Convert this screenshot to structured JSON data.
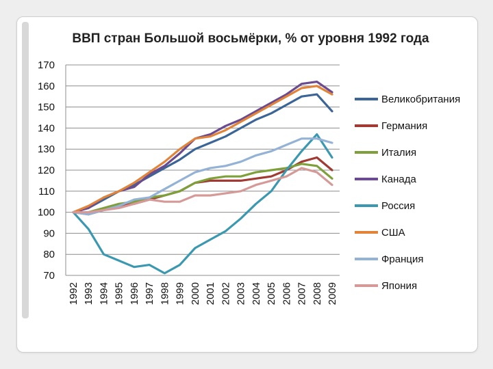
{
  "chart_data": {
    "type": "line",
    "title": "ВВП стран Большой восьмёрки, % от уровня 1992 года",
    "xlabel": "",
    "ylabel": "",
    "ylim": [
      70,
      170
    ],
    "yticks": [
      70,
      80,
      90,
      100,
      110,
      120,
      130,
      140,
      150,
      160,
      170
    ],
    "grid": "horizontal",
    "legend_position": "right",
    "x": [
      "1992",
      "1993",
      "1994",
      "1995",
      "1996",
      "1997",
      "1998",
      "1999",
      "2000",
      "2001",
      "2002",
      "2003",
      "2004",
      "2005",
      "2006",
      "2007",
      "2008",
      "2009"
    ],
    "series": [
      {
        "name": "Великобритания",
        "color": "#3b6596",
        "values": [
          100,
          102,
          106,
          110,
          113,
          117,
          121,
          125,
          130,
          133,
          136,
          140,
          144,
          147,
          151,
          155,
          156,
          148
        ]
      },
      {
        "name": "Германия",
        "color": "#a03a32",
        "values": [
          100,
          99,
          101,
          103,
          104,
          106,
          108,
          110,
          114,
          115,
          115,
          115,
          116,
          117,
          120,
          124,
          126,
          120
        ]
      },
      {
        "name": "Италия",
        "color": "#7ea03a",
        "values": [
          100,
          100,
          102,
          104,
          105,
          107,
          108,
          110,
          114,
          116,
          117,
          117,
          119,
          120,
          121,
          123,
          122,
          116
        ]
      },
      {
        "name": "Канада",
        "color": "#6a4b90",
        "values": [
          100,
          102,
          107,
          110,
          112,
          118,
          122,
          128,
          135,
          137,
          141,
          144,
          148,
          152,
          156,
          161,
          162,
          157
        ]
      },
      {
        "name": "Россия",
        "color": "#3a98b0",
        "values": [
          100,
          92,
          80,
          77,
          74,
          75,
          71,
          75,
          83,
          87,
          91,
          97,
          104,
          110,
          120,
          129,
          137,
          126
        ]
      },
      {
        "name": "США",
        "color": "#e1843a",
        "values": [
          100,
          103,
          107,
          110,
          114,
          119,
          124,
          130,
          135,
          136,
          139,
          143,
          147,
          151,
          155,
          159,
          160,
          156
        ]
      },
      {
        "name": "Франция",
        "color": "#93b2d6",
        "values": [
          100,
          99,
          101,
          103,
          106,
          107,
          111,
          115,
          119,
          121,
          122,
          124,
          127,
          129,
          132,
          135,
          135,
          133
        ]
      },
      {
        "name": "Япония",
        "color": "#d59a97",
        "values": [
          100,
          100,
          101,
          102,
          104,
          106,
          105,
          105,
          108,
          108,
          109,
          110,
          113,
          115,
          117,
          121,
          119,
          113
        ]
      }
    ]
  }
}
